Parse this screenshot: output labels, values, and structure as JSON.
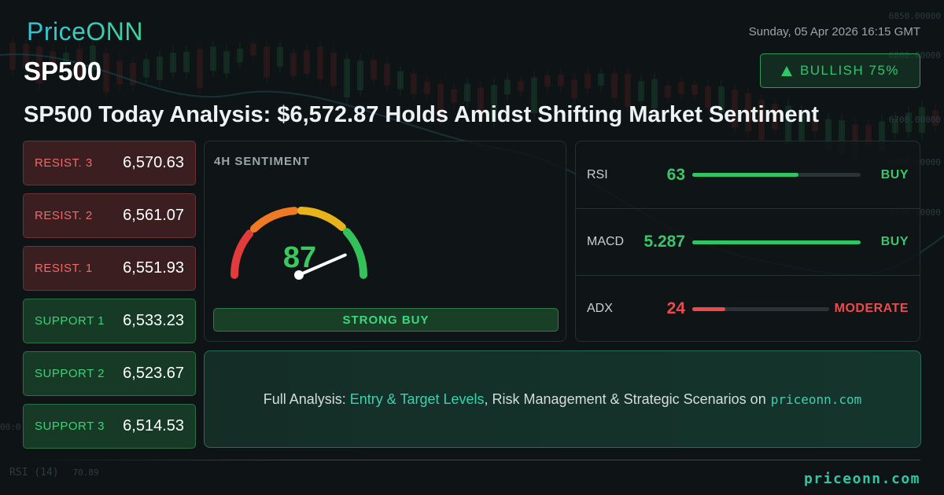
{
  "brand": {
    "logo": "PriceONN",
    "footer_domain": "priceonn.com"
  },
  "datetime": "Sunday, 05 Apr 2026 16:15 GMT",
  "ticker": "SP500",
  "badge": {
    "label": "BULLISH 75%",
    "icon": "triangle-up-icon",
    "color": "#34c46a"
  },
  "headline": "SP500 Today Analysis: $6,572.87 Holds Amidst Shifting Market Sentiment",
  "levels": [
    {
      "label": "RESIST. 3",
      "value": "6,570.63",
      "kind": "resistance"
    },
    {
      "label": "RESIST. 2",
      "value": "6,561.07",
      "kind": "resistance"
    },
    {
      "label": "RESIST. 1",
      "value": "6,551.93",
      "kind": "resistance"
    },
    {
      "label": "SUPPORT 1",
      "value": "6,533.23",
      "kind": "support"
    },
    {
      "label": "SUPPORT 2",
      "value": "6,523.67",
      "kind": "support"
    },
    {
      "label": "SUPPORT 3",
      "value": "6,514.53",
      "kind": "support"
    }
  ],
  "sentiment": {
    "title": "4H SENTIMENT",
    "value": "87",
    "score_fraction": 0.87,
    "signal": "STRONG BUY",
    "gauge_colors": [
      "#e23b3b",
      "#ee7a24",
      "#e8b21c",
      "#35c15a"
    ]
  },
  "indicators": [
    {
      "name": "RSI",
      "value": "63",
      "fill_fraction": 0.63,
      "signal": "BUY",
      "tone": "green",
      "color": "#32c463"
    },
    {
      "name": "MACD",
      "value": "5.287",
      "fill_fraction": 1.0,
      "signal": "BUY",
      "tone": "green",
      "color": "#32c463"
    },
    {
      "name": "ADX",
      "value": "24",
      "fill_fraction": 0.24,
      "signal": "MODERATE",
      "tone": "red",
      "color": "#ef4a4a"
    }
  ],
  "cta": {
    "prefix": "Full Analysis:",
    "highlight": "Entry & Target Levels",
    "middle": ", Risk Management & Strategic Scenarios on",
    "domain": "priceonn.com"
  },
  "background": {
    "axis_labels": [
      "6850.00000",
      "6800.00000",
      "6700.00000",
      "6650.00000",
      "6600.00000"
    ],
    "rsi_label": "RSI",
    "rsi_period": "(14)",
    "rsi_value": "70.89",
    "left_tick": "00:0"
  }
}
